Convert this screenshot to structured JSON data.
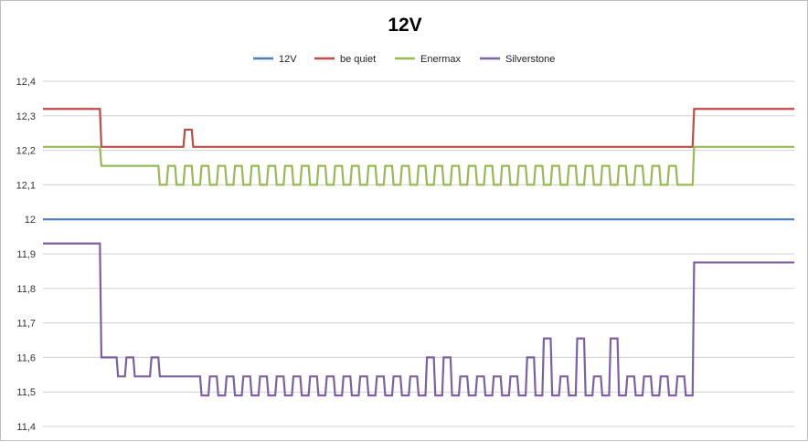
{
  "chart_data": {
    "type": "line",
    "title": "12V",
    "xlabel": "",
    "ylabel": "",
    "ylim": [
      11.4,
      12.4
    ],
    "yticks": [
      "11,4",
      "11,5",
      "11,6",
      "11,7",
      "11,8",
      "11,9",
      "12",
      "12,1",
      "12,2",
      "12,3",
      "12,4"
    ],
    "grid": true,
    "legend": "top",
    "x": [
      0,
      10,
      20,
      30,
      40,
      50,
      60,
      70,
      80,
      90,
      100,
      110,
      120,
      130,
      140,
      150,
      160,
      170,
      180,
      190,
      200,
      210,
      220,
      230,
      240,
      250,
      260,
      270,
      280,
      290,
      300,
      310,
      320,
      330,
      340,
      350,
      360,
      370,
      380,
      390,
      400,
      410,
      420,
      430,
      440,
      450,
      460,
      470,
      480,
      490,
      500,
      510,
      520,
      530,
      540,
      550,
      560,
      570,
      580,
      590,
      600,
      610,
      620,
      630,
      640,
      650,
      660,
      670,
      680,
      690,
      700,
      710,
      720,
      730,
      740,
      750,
      760,
      770,
      780,
      790,
      800,
      810,
      820,
      830,
      840,
      850,
      860,
      870,
      880,
      890,
      900
    ],
    "series": [
      {
        "name": "12V",
        "color": "#4a7ebb",
        "values": [
          12,
          12,
          12,
          12,
          12,
          12,
          12,
          12,
          12,
          12,
          12,
          12,
          12,
          12,
          12,
          12,
          12,
          12,
          12,
          12,
          12,
          12,
          12,
          12,
          12,
          12,
          12,
          12,
          12,
          12,
          12,
          12,
          12,
          12,
          12,
          12,
          12,
          12,
          12,
          12,
          12,
          12,
          12,
          12,
          12,
          12,
          12,
          12,
          12,
          12,
          12,
          12,
          12,
          12,
          12,
          12,
          12,
          12,
          12,
          12,
          12,
          12,
          12,
          12,
          12,
          12,
          12,
          12,
          12,
          12,
          12,
          12,
          12,
          12,
          12,
          12,
          12,
          12,
          12,
          12,
          12,
          12,
          12,
          12,
          12,
          12,
          12,
          12,
          12,
          12,
          12
        ]
      },
      {
        "name": "be quiet",
        "color": "#be4b48",
        "values": [
          12.32,
          12.32,
          12.32,
          12.32,
          12.32,
          12.32,
          12.32,
          12.21,
          12.21,
          12.21,
          12.21,
          12.21,
          12.21,
          12.21,
          12.21,
          12.21,
          12.21,
          12.26,
          12.21,
          12.21,
          12.21,
          12.21,
          12.21,
          12.21,
          12.21,
          12.21,
          12.21,
          12.21,
          12.21,
          12.21,
          12.21,
          12.21,
          12.21,
          12.21,
          12.21,
          12.21,
          12.21,
          12.21,
          12.21,
          12.21,
          12.21,
          12.21,
          12.21,
          12.21,
          12.21,
          12.21,
          12.21,
          12.21,
          12.21,
          12.21,
          12.21,
          12.21,
          12.21,
          12.21,
          12.21,
          12.21,
          12.21,
          12.21,
          12.21,
          12.21,
          12.21,
          12.21,
          12.21,
          12.21,
          12.21,
          12.21,
          12.21,
          12.21,
          12.21,
          12.21,
          12.21,
          12.21,
          12.21,
          12.21,
          12.21,
          12.21,
          12.21,
          12.21,
          12.32,
          12.32,
          12.32,
          12.32,
          12.32,
          12.32,
          12.32,
          12.32,
          12.32,
          12.32,
          12.32,
          12.32,
          12.32
        ]
      },
      {
        "name": "Enermax",
        "color": "#98b954",
        "values": [
          12.21,
          12.21,
          12.21,
          12.21,
          12.21,
          12.21,
          12.21,
          12.155,
          12.155,
          12.155,
          12.155,
          12.155,
          12.155,
          12.155,
          12.1,
          12.155,
          12.1,
          12.155,
          12.1,
          12.155,
          12.1,
          12.155,
          12.1,
          12.155,
          12.1,
          12.155,
          12.1,
          12.155,
          12.1,
          12.155,
          12.1,
          12.155,
          12.1,
          12.155,
          12.1,
          12.155,
          12.1,
          12.155,
          12.1,
          12.155,
          12.1,
          12.155,
          12.1,
          12.155,
          12.1,
          12.155,
          12.1,
          12.155,
          12.1,
          12.155,
          12.1,
          12.155,
          12.1,
          12.155,
          12.1,
          12.155,
          12.1,
          12.155,
          12.1,
          12.155,
          12.1,
          12.155,
          12.1,
          12.155,
          12.1,
          12.155,
          12.1,
          12.155,
          12.1,
          12.155,
          12.1,
          12.155,
          12.1,
          12.155,
          12.1,
          12.155,
          12.1,
          12.1,
          12.21,
          12.21,
          12.21,
          12.21,
          12.21,
          12.21,
          12.21,
          12.21,
          12.21,
          12.21,
          12.21,
          12.21,
          12.21
        ]
      },
      {
        "name": "Silverstone",
        "color": "#7d60a0",
        "values": [
          11.93,
          11.93,
          11.93,
          11.93,
          11.93,
          11.93,
          11.93,
          11.6,
          11.6,
          11.545,
          11.6,
          11.545,
          11.545,
          11.6,
          11.545,
          11.545,
          11.545,
          11.545,
          11.545,
          11.49,
          11.545,
          11.49,
          11.545,
          11.49,
          11.545,
          11.49,
          11.545,
          11.49,
          11.545,
          11.49,
          11.545,
          11.49,
          11.545,
          11.49,
          11.545,
          11.49,
          11.545,
          11.49,
          11.545,
          11.49,
          11.545,
          11.49,
          11.545,
          11.49,
          11.545,
          11.49,
          11.6,
          11.49,
          11.6,
          11.49,
          11.545,
          11.49,
          11.545,
          11.49,
          11.545,
          11.49,
          11.545,
          11.49,
          11.6,
          11.49,
          11.655,
          11.49,
          11.545,
          11.49,
          11.655,
          11.49,
          11.545,
          11.49,
          11.655,
          11.49,
          11.545,
          11.49,
          11.545,
          11.49,
          11.545,
          11.49,
          11.545,
          11.49,
          11.875,
          11.875,
          11.875,
          11.875,
          11.875,
          11.875,
          11.875,
          11.875,
          11.875,
          11.875,
          11.875,
          11.875,
          11.875
        ]
      }
    ]
  }
}
